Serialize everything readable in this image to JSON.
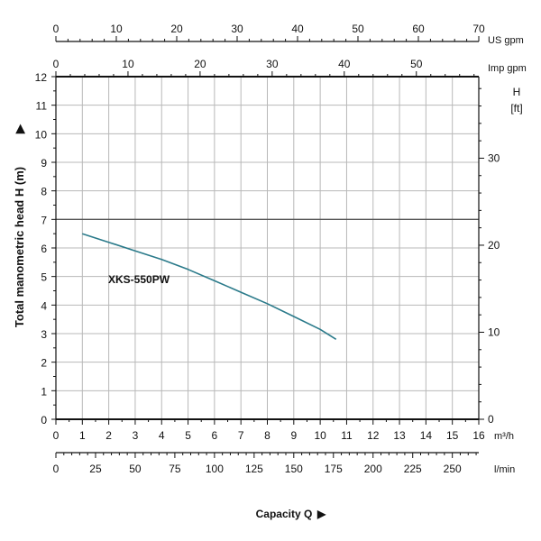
{
  "chart_data": {
    "type": "line",
    "title": "",
    "ylabel": "Total manometric head H (m)",
    "xlabel": "Capacity Q",
    "x_unit": "m³/h",
    "x_ticks": [
      "0",
      "1",
      "2",
      "3",
      "4",
      "5",
      "6",
      "7",
      "8",
      "9",
      "10",
      "11",
      "12",
      "13",
      "14",
      "15",
      "16"
    ],
    "xlim": [
      0,
      16
    ],
    "y_ticks": [
      "0",
      "1",
      "2",
      "3",
      "4",
      "5",
      "6",
      "7",
      "8",
      "9",
      "10",
      "11",
      "12"
    ],
    "ylim": [
      0,
      12
    ],
    "grid": true,
    "series": [
      {
        "name": "XKS-550PW",
        "color": "#2a7a8a",
        "x": [
          1.0,
          2.0,
          3.0,
          4.0,
          5.0,
          6.0,
          7.0,
          8.0,
          9.0,
          10.0,
          10.6
        ],
        "y": [
          6.5,
          6.2,
          5.9,
          5.6,
          5.25,
          4.85,
          4.45,
          4.05,
          3.6,
          3.15,
          2.8
        ]
      }
    ],
    "top_axes": [
      {
        "unit": "US gpm",
        "ticks": [
          "0",
          "10",
          "20",
          "30",
          "40",
          "50",
          "60",
          "70"
        ],
        "range": [
          0,
          70
        ]
      },
      {
        "unit": "Imp gpm",
        "ticks": [
          "0",
          "10",
          "20",
          "30",
          "40",
          "50"
        ],
        "range": [
          0,
          58.66
        ]
      }
    ],
    "right_axis": {
      "unit_line1": "H",
      "unit_line2": "[ft]",
      "ticks": [
        "0",
        "10",
        "20",
        "30"
      ],
      "range": [
        0,
        39.37
      ]
    },
    "bottom_axis2": {
      "unit": "l/min",
      "ticks": [
        "0",
        "25",
        "50",
        "75",
        "100",
        "125",
        "150",
        "175",
        "200",
        "225",
        "250"
      ],
      "range": [
        0,
        266.67
      ]
    }
  }
}
